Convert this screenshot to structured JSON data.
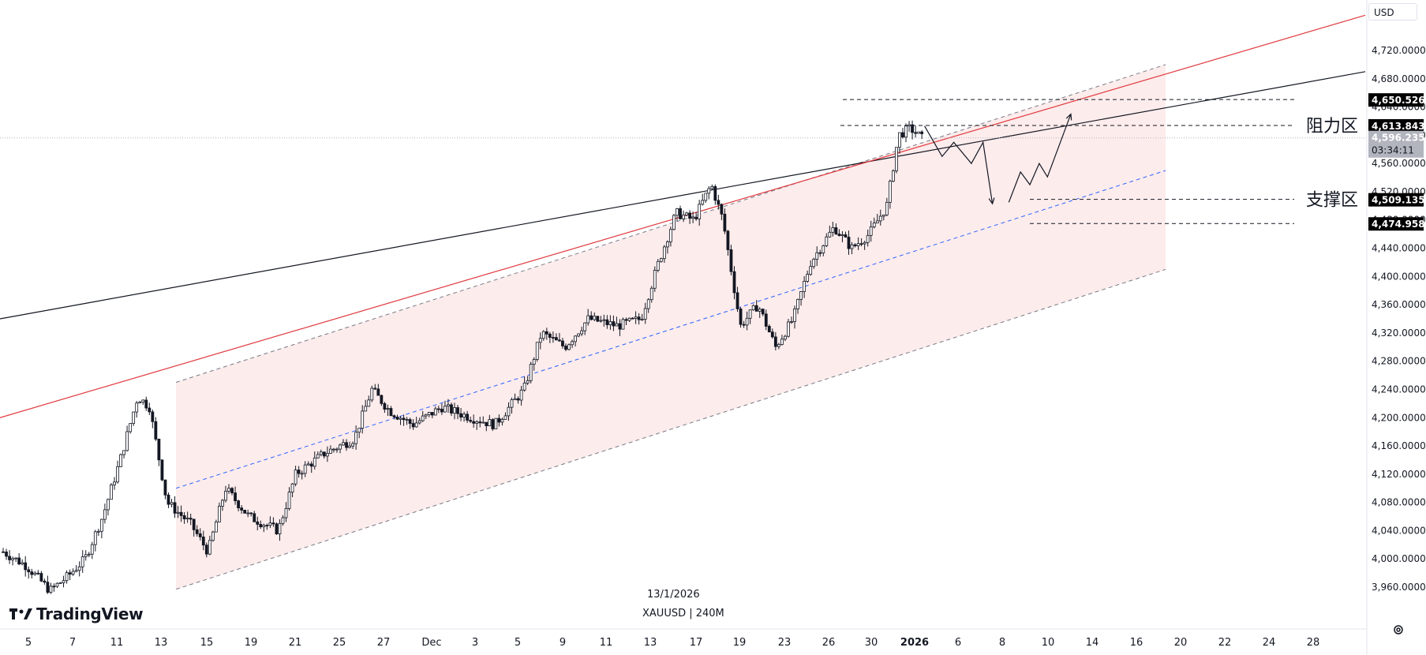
{
  "chart_data": {
    "type": "candlestick",
    "symbol": "XAUUSD",
    "timeframe": "240M",
    "footer_date": "13/1/2026",
    "footer_symbol": "XAUUSD | 240M",
    "currency": "USD",
    "brand": "TradingView",
    "ylim": [
      3920,
      4760
    ],
    "y_ticks": [
      "4,720.0000",
      "4,680.0000",
      "4,640.0000",
      "4,600.0000",
      "4,560.0000",
      "4,520.0000",
      "4,480.0000",
      "4,440.0000",
      "4,400.0000",
      "4,360.0000",
      "4,320.0000",
      "4,280.0000",
      "4,240.0000",
      "4,200.0000",
      "4,160.0000",
      "4,120.0000",
      "4,080.0000",
      "4,040.0000",
      "4,000.0000",
      "3,960.0000"
    ],
    "y_tick_values": [
      4720,
      4680,
      4640,
      4600,
      4560,
      4520,
      4480,
      4440,
      4400,
      4360,
      4320,
      4280,
      4240,
      4200,
      4160,
      4120,
      4080,
      4040,
      4000,
      3960
    ],
    "x_ticks": [
      {
        "label": "5",
        "bold": false
      },
      {
        "label": "7",
        "bold": false
      },
      {
        "label": "11",
        "bold": false
      },
      {
        "label": "13",
        "bold": false
      },
      {
        "label": "15",
        "bold": false
      },
      {
        "label": "19",
        "bold": false
      },
      {
        "label": "21",
        "bold": false
      },
      {
        "label": "25",
        "bold": false
      },
      {
        "label": "27",
        "bold": false
      },
      {
        "label": "Dec",
        "bold": false
      },
      {
        "label": "3",
        "bold": false
      },
      {
        "label": "5",
        "bold": false
      },
      {
        "label": "9",
        "bold": false
      },
      {
        "label": "11",
        "bold": false
      },
      {
        "label": "13",
        "bold": false
      },
      {
        "label": "17",
        "bold": false
      },
      {
        "label": "19",
        "bold": false
      },
      {
        "label": "23",
        "bold": false
      },
      {
        "label": "26",
        "bold": false
      },
      {
        "label": "30",
        "bold": false
      },
      {
        "label": "2026",
        "bold": true
      },
      {
        "label": "6",
        "bold": false
      },
      {
        "label": "8",
        "bold": false
      },
      {
        "label": "10",
        "bold": false
      },
      {
        "label": "14",
        "bold": false
      },
      {
        "label": "16",
        "bold": false
      },
      {
        "label": "20",
        "bold": false
      },
      {
        "label": "22",
        "bold": false
      },
      {
        "label": "24",
        "bold": false
      },
      {
        "label": "28",
        "bold": false
      }
    ],
    "price_tags": [
      {
        "label": "4,650.5267",
        "value": 4650.5267,
        "style": "dark"
      },
      {
        "label": "4,613.8434",
        "value": 4613.8434,
        "style": "dark"
      },
      {
        "label": "4,596.2350",
        "value": 4596.235,
        "style": "current",
        "sub": "03:34:11"
      },
      {
        "label": "4,509.1350",
        "value": 4509.135,
        "style": "dark"
      },
      {
        "label": "4,474.9589",
        "value": 4474.9589,
        "style": "dark"
      }
    ],
    "zones": [
      {
        "label": "阻力区",
        "value": 4613.8434
      },
      {
        "label": "支撑区",
        "value": 4509.135
      }
    ],
    "channel": {
      "upper": [
        4250,
        4700
      ],
      "middle": [
        4100,
        4550
      ],
      "lower": [
        3957,
        4410
      ],
      "fill": "#fdecec"
    },
    "lines": {
      "black_trend": [
        4340,
        4690
      ],
      "red_trend": [
        4200,
        4770
      ]
    },
    "colors": {
      "candle": "#131722",
      "channel_dash": "#787b86",
      "mid_dash": "#2962ff",
      "red_line": "#e0393e",
      "black_line": "#131722",
      "tag_dark": "#000000",
      "tag_current": "#b2b5be"
    },
    "path_key": [
      {
        "t": 0,
        "p": 4010
      },
      {
        "t": 0.02,
        "p": 3990
      },
      {
        "t": 0.04,
        "p": 3955
      },
      {
        "t": 0.055,
        "p": 3975
      },
      {
        "t": 0.07,
        "p": 4000
      },
      {
        "t": 0.085,
        "p": 4060
      },
      {
        "t": 0.1,
        "p": 4140
      },
      {
        "t": 0.115,
        "p": 4230
      },
      {
        "t": 0.125,
        "p": 4215
      },
      {
        "t": 0.14,
        "p": 4080
      },
      {
        "t": 0.16,
        "p": 4050
      },
      {
        "t": 0.175,
        "p": 4010
      },
      {
        "t": 0.19,
        "p": 4100
      },
      {
        "t": 0.21,
        "p": 4060
      },
      {
        "t": 0.235,
        "p": 4040
      },
      {
        "t": 0.25,
        "p": 4120
      },
      {
        "t": 0.275,
        "p": 4150
      },
      {
        "t": 0.3,
        "p": 4170
      },
      {
        "t": 0.315,
        "p": 4240
      },
      {
        "t": 0.33,
        "p": 4210
      },
      {
        "t": 0.35,
        "p": 4190
      },
      {
        "t": 0.375,
        "p": 4215
      },
      {
        "t": 0.4,
        "p": 4200
      },
      {
        "t": 0.42,
        "p": 4190
      },
      {
        "t": 0.445,
        "p": 4240
      },
      {
        "t": 0.46,
        "p": 4320
      },
      {
        "t": 0.48,
        "p": 4300
      },
      {
        "t": 0.5,
        "p": 4340
      },
      {
        "t": 0.525,
        "p": 4330
      },
      {
        "t": 0.545,
        "p": 4340
      },
      {
        "t": 0.56,
        "p": 4420
      },
      {
        "t": 0.575,
        "p": 4490
      },
      {
        "t": 0.59,
        "p": 4480
      },
      {
        "t": 0.605,
        "p": 4530
      },
      {
        "t": 0.615,
        "p": 4480
      },
      {
        "t": 0.63,
        "p": 4330
      },
      {
        "t": 0.645,
        "p": 4360
      },
      {
        "t": 0.66,
        "p": 4300
      },
      {
        "t": 0.675,
        "p": 4340
      },
      {
        "t": 0.69,
        "p": 4420
      },
      {
        "t": 0.71,
        "p": 4470
      },
      {
        "t": 0.725,
        "p": 4440
      },
      {
        "t": 0.74,
        "p": 4460
      },
      {
        "t": 0.755,
        "p": 4500
      },
      {
        "t": 0.765,
        "p": 4600
      },
      {
        "t": 0.775,
        "p": 4610
      },
      {
        "t": 0.785,
        "p": 4596
      }
    ],
    "forecast_down": [
      [
        4613,
        0.79
      ],
      [
        4570,
        0.805
      ],
      [
        4590,
        0.815
      ],
      [
        4560,
        0.83
      ],
      [
        4590,
        0.84
      ],
      [
        4503,
        0.848
      ]
    ],
    "forecast_up": [
      [
        4505,
        0.862
      ],
      [
        4548,
        0.872
      ],
      [
        4530,
        0.88
      ],
      [
        4560,
        0.888
      ],
      [
        4541,
        0.895
      ],
      [
        4630,
        0.915
      ]
    ]
  }
}
